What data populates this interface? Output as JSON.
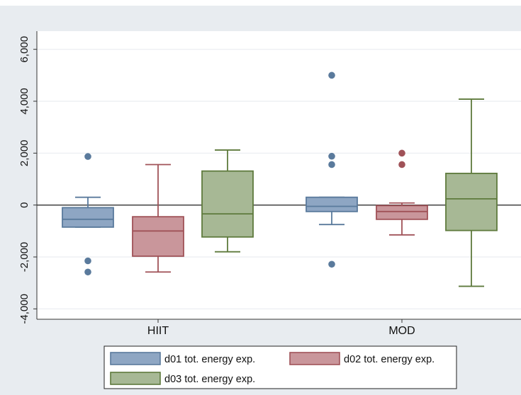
{
  "chart_data": {
    "type": "box",
    "categories": [
      "HIIT",
      "MOD"
    ],
    "ylim": [
      -4400,
      6700
    ],
    "yticks": [
      -4000,
      -2000,
      0,
      2000,
      4000,
      6000
    ],
    "ytick_labels": [
      "-4,000",
      "-2,000",
      "0",
      "2,000",
      "4,000",
      "6,000"
    ],
    "grid": true,
    "reference_line": 0,
    "legend_placement": "bottom",
    "series": [
      {
        "name": "d01 tot. energy exp.",
        "color": "#5a7a9c",
        "fill": "#8ea6c3",
        "boxes": [
          {
            "category": "HIIT",
            "whisker_low": -850,
            "q1": -850,
            "median": -550,
            "q3": -100,
            "whisker_high": 300,
            "outliers": [
              1870,
              -2150,
              -2580
            ]
          },
          {
            "category": "MOD",
            "whisker_low": -750,
            "q1": -250,
            "median": -50,
            "q3": 300,
            "whisker_high": 300,
            "outliers": [
              5000,
              1880,
              1560,
              -2280
            ]
          }
        ]
      },
      {
        "name": "d02 tot. energy exp.",
        "color": "#a05258",
        "fill": "#c9969b",
        "boxes": [
          {
            "category": "HIIT",
            "whisker_low": -2580,
            "q1": -1970,
            "median": -1000,
            "q3": -450,
            "whisker_high": 1560,
            "outliers": []
          },
          {
            "category": "MOD",
            "whisker_low": -1150,
            "q1": -550,
            "median": -250,
            "q3": -20,
            "whisker_high": 80,
            "outliers": [
              2000,
              1560
            ]
          }
        ]
      },
      {
        "name": "d03 tot. energy exp.",
        "color": "#5e7a3c",
        "fill": "#a7b895",
        "boxes": [
          {
            "category": "HIIT",
            "whisker_low": -1800,
            "q1": -1230,
            "median": -340,
            "q3": 1310,
            "whisker_high": 2120,
            "outliers": []
          },
          {
            "category": "MOD",
            "whisker_low": -3130,
            "q1": -980,
            "median": 240,
            "q3": 1220,
            "whisker_high": 4080,
            "outliers": []
          }
        ]
      }
    ]
  }
}
